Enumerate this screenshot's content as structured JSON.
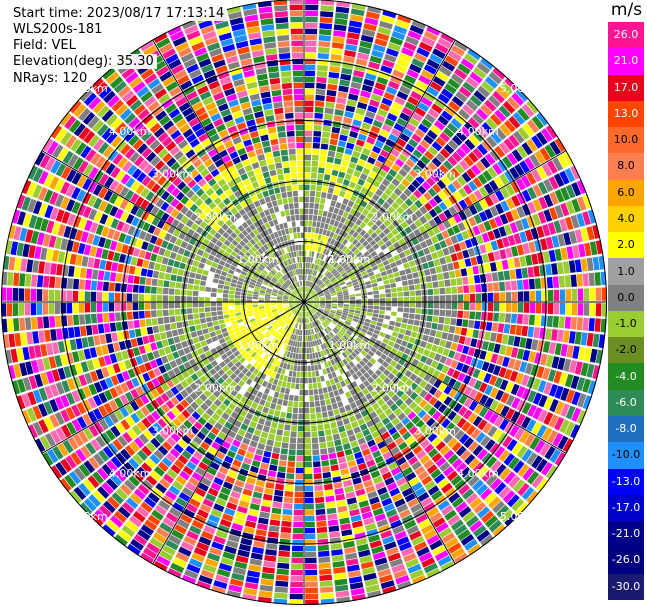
{
  "info": {
    "start_time": "Start time: 2023/08/17 17:13:14",
    "instrument": "WLS200s-181",
    "field": "Field: VEL",
    "elevation": "Elevation(deg): 35.30",
    "nrays": "NRays: 120"
  },
  "colorbar": {
    "unit": "m/s",
    "bins": [
      {
        "label": "26.0",
        "color": "#ff1493"
      },
      {
        "label": "21.0",
        "color": "#ff00ff"
      },
      {
        "label": "17.0",
        "color": "#e8001c"
      },
      {
        "label": "13.0",
        "color": "#ff4500"
      },
      {
        "label": "10.0",
        "color": "#ff6a2a"
      },
      {
        "label": "8.0",
        "color": "#ff7f50"
      },
      {
        "label": "6.0",
        "color": "#ffa500"
      },
      {
        "label": "4.0",
        "color": "#ffd200"
      },
      {
        "label": "2.0",
        "color": "#ffff00"
      },
      {
        "label": "1.0",
        "color": "#a0a0a0"
      },
      {
        "label": "0.0",
        "color": "#808080"
      },
      {
        "label": "-1.0",
        "color": "#9acd32"
      },
      {
        "label": "-2.0",
        "color": "#6b8e23"
      },
      {
        "label": "-4.0",
        "color": "#228b22"
      },
      {
        "label": "-6.0",
        "color": "#2e8b57"
      },
      {
        "label": "-8.0",
        "color": "#1e6fbf"
      },
      {
        "label": "-10.0",
        "color": "#1e90ff"
      },
      {
        "label": "-13.0",
        "color": "#0000ff"
      },
      {
        "label": "-17.0",
        "color": "#0000cd"
      },
      {
        "label": "-21.0",
        "color": "#00008b"
      },
      {
        "label": "-26.0",
        "color": "#000080"
      },
      {
        "label": "-30.0",
        "color": "#191970"
      }
    ]
  },
  "rings": [
    {
      "label": "1.00km",
      "km": 1
    },
    {
      "label": "2.00km",
      "km": 2
    },
    {
      "label": "3.00km",
      "km": 3
    },
    {
      "label": "4.00km",
      "km": 4
    },
    {
      "label": "5.00km",
      "km": 5
    }
  ],
  "noise_palette": [
    "#ff1493",
    "#ff00ff",
    "#e8001c",
    "#ff4500",
    "#ff7f50",
    "#ffa500",
    "#ffff00",
    "#0000ff",
    "#00008b",
    "#000080",
    "#9acd32",
    "#2e8b57",
    "#1e90ff",
    "#ff69b4",
    "#808080",
    "#228b22"
  ]
}
